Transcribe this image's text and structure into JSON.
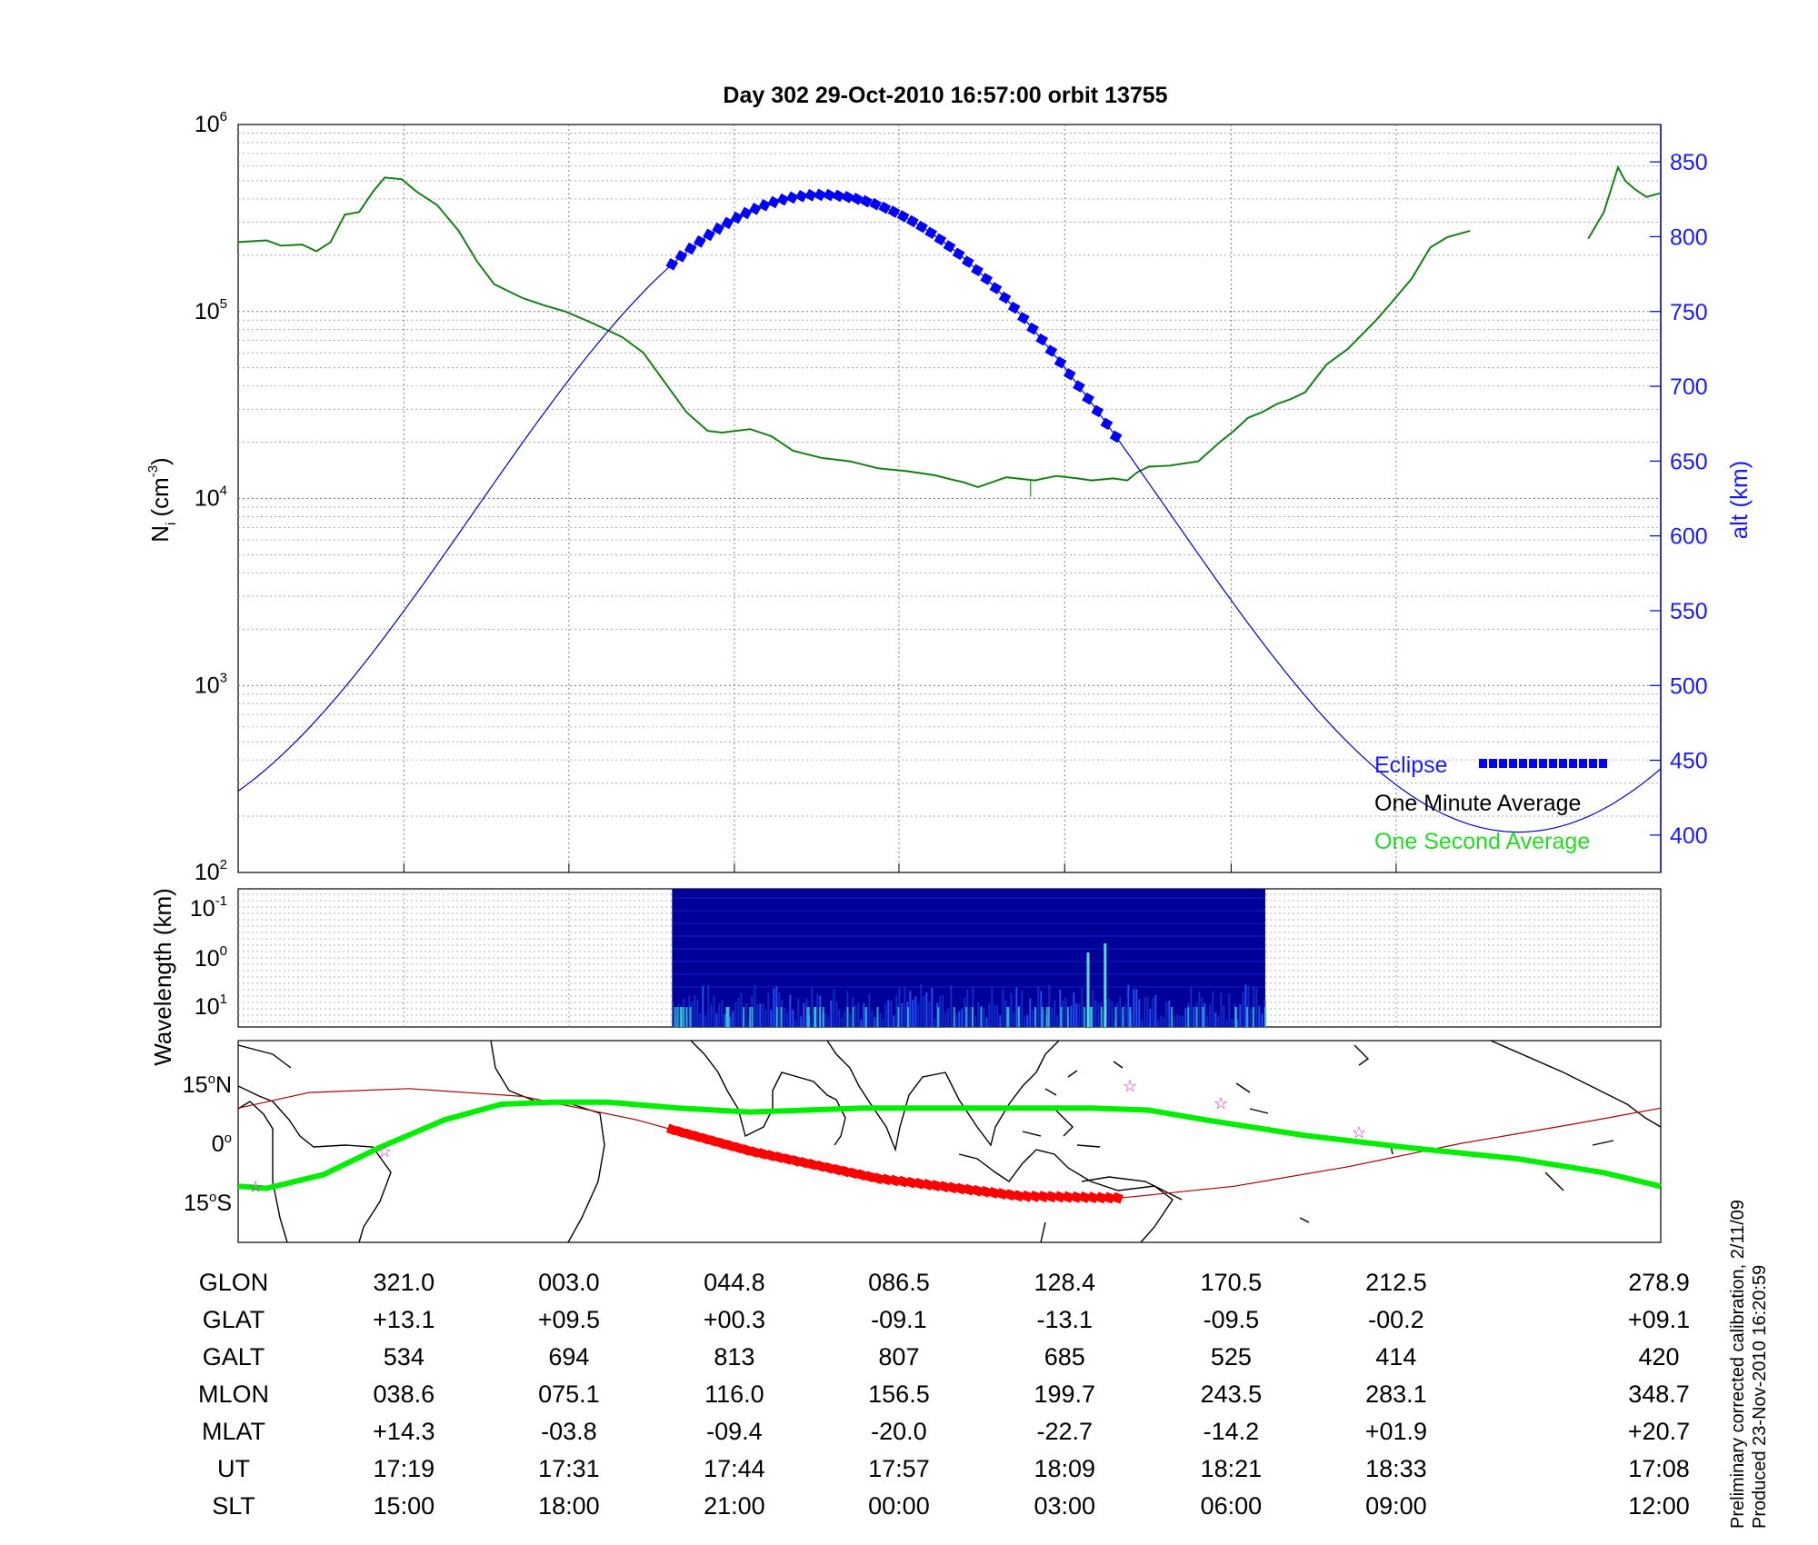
{
  "title": "Day 302  29-Oct-2010 16:57:00   orbit 13755",
  "colors": {
    "density": "#1a6b1a",
    "alt": "#0000cc",
    "eclipse": "#0000ff",
    "eclipse_map": "#ff0000",
    "track": "#00ee00",
    "track_thin": "#aa0000",
    "spec_bg": "#000099"
  },
  "legend": {
    "eclipse": "Eclipse",
    "one_minute": "One Minute Average",
    "one_second": "One Second Average"
  },
  "note": {
    "line1": "Preliminary corrected calibration, 2/11/09",
    "line2": "Produced 23-Nov-2010 16:20:59"
  },
  "chart_data": [
    {
      "type": "line",
      "panel": "ion-density",
      "x_ticks": [
        "321.0",
        "003.0",
        "044.8",
        "086.5",
        "128.4",
        "170.5",
        "212.5",
        "278.9"
      ],
      "ylabel_left": "N",
      "ylabel_left_sub": "i",
      "ylabel_left_unit": "(cm",
      "ylabel_left_unit_sup": "-3",
      "ylabel_left_close": ")",
      "ylabel_right": "alt (km)",
      "y_left_scale": "log",
      "y_left_ticks": [
        {
          "base": "10",
          "exp": "2"
        },
        {
          "base": "10",
          "exp": "3"
        },
        {
          "base": "10",
          "exp": "4"
        },
        {
          "base": "10",
          "exp": "5"
        },
        {
          "base": "10",
          "exp": "6"
        }
      ],
      "ylim_left": [
        100,
        1000000
      ],
      "ylim_right": [
        375,
        875
      ],
      "y_right_ticks": [
        "400",
        "450",
        "500",
        "550",
        "600",
        "650",
        "700",
        "750",
        "800",
        "850"
      ],
      "grid": true,
      "legend_position": "bottom-right",
      "series": [
        {
          "name": "One Minute Average",
          "x_fraction": [
            0,
            0.02,
            0.03,
            0.045,
            0.055,
            0.065,
            0.075,
            0.085,
            0.095,
            0.103,
            0.115,
            0.125,
            0.14,
            0.155,
            0.168,
            0.18,
            0.2,
            0.215,
            0.23,
            0.25,
            0.27,
            0.285,
            0.295,
            0.305,
            0.315,
            0.33,
            0.34,
            0.36,
            0.375,
            0.39,
            0.41,
            0.43,
            0.45,
            0.47,
            0.49,
            0.5,
            0.51,
            0.52,
            0.54,
            0.56,
            0.575,
            0.59,
            0.6,
            0.615,
            0.625,
            0.632,
            0.64,
            0.655,
            0.66,
            0.675,
            0.69,
            0.7,
            0.71,
            0.72,
            0.73,
            0.74,
            0.75,
            0.765,
            0.78,
            0.8,
            0.81,
            0.825,
            0.838,
            0.85,
            0.866,
            0.876,
            0.885,
            0.892
          ],
          "values": [
            235000,
            240000,
            225000,
            228000,
            210000,
            235000,
            330000,
            340000,
            440000,
            520000,
            510000,
            440000,
            370000,
            270000,
            185000,
            140000,
            118000,
            108000,
            100000,
            86000,
            73000,
            60000,
            47000,
            37000,
            29000,
            23000,
            22500,
            23500,
            21500,
            18000,
            16500,
            15800,
            14500,
            14000,
            13300,
            12700,
            12200,
            11500,
            13000,
            12500,
            13200,
            12800,
            12500,
            12800,
            12500,
            13800,
            14800,
            15000,
            15200,
            15800,
            20000,
            23000,
            27000,
            29000,
            32000,
            34000,
            37000,
            52000,
            63000,
            90000,
            110000,
            150000,
            220000,
            250000,
            270000,
            null,
            null,
            null
          ]
        },
        {
          "name": "One Minute Average (resumed)",
          "x_fraction": [
            0.949,
            0.96,
            0.97,
            0.975,
            0.982,
            0.99,
            1.0
          ],
          "values": [
            245000,
            340000,
            590000,
            500000,
            450000,
            410000,
            430000
          ]
        },
        {
          "name": "alt (km)",
          "x": [
            0,
            0.05,
            0.1,
            0.15,
            0.2,
            0.25,
            0.3,
            0.35,
            0.4,
            0.45,
            0.5,
            0.55,
            0.6,
            0.65,
            0.7,
            0.75,
            0.8,
            0.85,
            0.9,
            0.95,
            1.0
          ],
          "values": [
            420,
            440,
            480,
            530,
            590,
            650,
            705,
            760,
            800,
            825,
            828,
            810,
            770,
            715,
            650,
            585,
            520,
            465,
            420,
            400,
            420
          ]
        },
        {
          "name": "Eclipse",
          "x_range": [
            0.305,
            0.62
          ]
        }
      ]
    },
    {
      "type": "heatmap",
      "panel": "wavelength-spectrogram",
      "ylabel": "Wavelength (km)",
      "y_ticks": [
        {
          "base": "10",
          "exp": "-1"
        },
        {
          "base": "10",
          "exp": "0"
        },
        {
          "base": "10",
          "exp": "1"
        }
      ],
      "x_range": [
        0.305,
        0.722
      ]
    },
    {
      "type": "line",
      "panel": "ground-track-map",
      "y_ticks": [
        {
          "value": "15",
          "unit": "N"
        },
        {
          "value": "0",
          "unit": ""
        },
        {
          "value": "15",
          "unit": "S"
        }
      ],
      "series": [
        {
          "name": "magnetic equator",
          "x": [
            0,
            0.05,
            0.12,
            0.2,
            0.28,
            0.36,
            0.45,
            0.55,
            0.62,
            0.7,
            0.78,
            0.86,
            0.94,
            1.0
          ],
          "y_deg": [
            9,
            13,
            14,
            12,
            6,
            -2,
            -9,
            -13.5,
            -14,
            -11,
            -6,
            0,
            5,
            9
          ]
        },
        {
          "name": "satellite track",
          "x": [
            0,
            0.02,
            0.06,
            0.1,
            0.145,
            0.185,
            0.22,
            0.26,
            0.31,
            0.36,
            0.44,
            0.52,
            0.6,
            0.64,
            0.68,
            0.75,
            0.82,
            0.9,
            0.96,
            1.0
          ],
          "y_deg": [
            -11,
            -11.5,
            -8,
            -1,
            6,
            10,
            10.5,
            10.5,
            9,
            8,
            9,
            9,
            9,
            8.5,
            6,
            2,
            -1,
            -4,
            -7.5,
            -11
          ]
        },
        {
          "name": "eclipse segment",
          "x_range": [
            0.305,
            0.62
          ]
        }
      ]
    }
  ],
  "table": {
    "rows": [
      {
        "label": "GLON",
        "values": [
          "321.0",
          "003.0",
          "044.8",
          "086.5",
          "128.4",
          "170.5",
          "212.5",
          "278.9"
        ]
      },
      {
        "label": "GLAT",
        "values": [
          "+13.1",
          "+09.5",
          "+00.3",
          "-09.1",
          "-13.1",
          "-09.5",
          "-00.2",
          "+09.1"
        ]
      },
      {
        "label": "GALT",
        "values": [
          "534",
          "694",
          "813",
          "807",
          "685",
          "525",
          "414",
          "420"
        ]
      },
      {
        "label": "MLON",
        "values": [
          "038.6",
          "075.1",
          "116.0",
          "156.5",
          "199.7",
          "243.5",
          "283.1",
          "348.7"
        ]
      },
      {
        "label": "MLAT",
        "values": [
          "+14.3",
          "-03.8",
          "-09.4",
          "-20.0",
          "-22.7",
          "-14.2",
          "+01.9",
          "+20.7"
        ]
      },
      {
        "label": "UT",
        "values": [
          "17:19",
          "17:31",
          "17:44",
          "17:57",
          "18:09",
          "18:21",
          "18:33",
          "17:08"
        ]
      },
      {
        "label": "SLT",
        "values": [
          "15:00",
          "18:00",
          "21:00",
          "00:00",
          "03:00",
          "06:00",
          "09:00",
          "12:00"
        ]
      }
    ]
  }
}
